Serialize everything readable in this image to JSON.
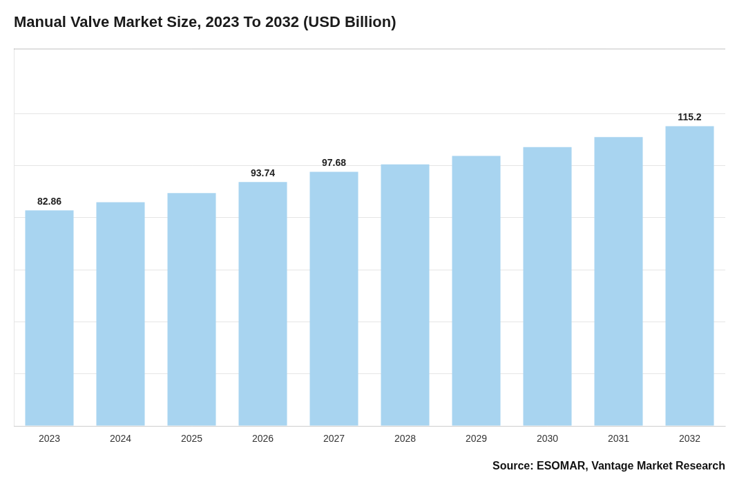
{
  "chart_data": {
    "type": "bar",
    "title": "Manual Valve Market Size, 2023 To 2032 (USD Billion)",
    "source": "Source: ESOMAR, Vantage Market Research",
    "categories": [
      "2023",
      "2024",
      "2025",
      "2026",
      "2027",
      "2028",
      "2029",
      "2030",
      "2031",
      "2032"
    ],
    "values": [
      82.86,
      86.0,
      89.5,
      93.74,
      97.68,
      100.5,
      103.8,
      107.2,
      111.0,
      115.2
    ],
    "value_labels": [
      "82.86",
      null,
      null,
      "93.74",
      "97.68",
      null,
      null,
      null,
      null,
      "115.2"
    ],
    "data_labels": true,
    "color": "#a8d4f0",
    "ylim": [
      0,
      145
    ],
    "yticks": [
      0,
      20,
      40,
      60,
      80,
      100,
      120
    ],
    "grid": true,
    "tick_labels": "x"
  }
}
